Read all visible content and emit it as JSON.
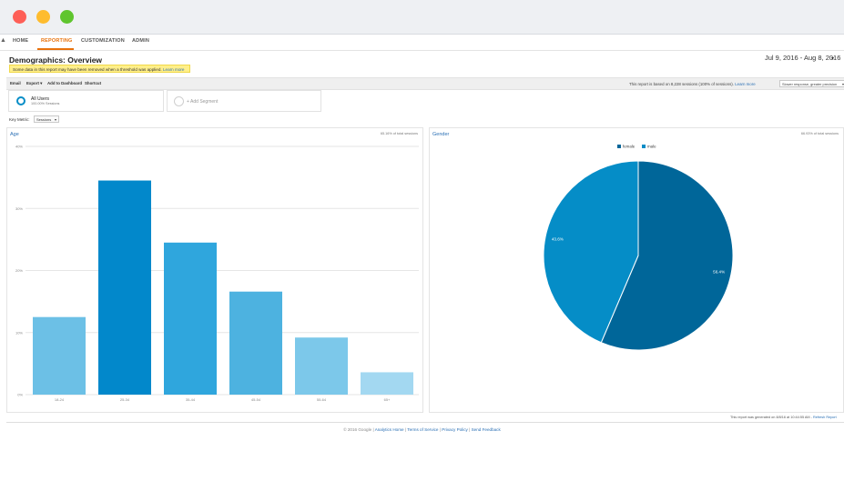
{
  "window": {
    "controls": [
      "close",
      "minimize",
      "maximize"
    ]
  },
  "nav": {
    "tabs": [
      {
        "label": "HOME",
        "active": false
      },
      {
        "label": "REPORTING",
        "active": true
      },
      {
        "label": "CUSTOMIZATION",
        "active": false
      },
      {
        "label": "ADMIN",
        "active": false
      }
    ]
  },
  "header": {
    "title": "Demographics: Overview",
    "date_range": "Jul 9, 2016 - Aug 8, 2016",
    "notice_text": "Some data in this report may have been removed when a threshold was applied.",
    "notice_link": "Learn more"
  },
  "toolbar": {
    "buttons": [
      "Email",
      "Export",
      "Add to Dashboard",
      "Shortcut"
    ],
    "export_caret": "▾",
    "sessions_text": "This report is based on 8,228 sessions (100% of sessions).",
    "sessions_link": "Learn more",
    "precision_select": "Slower response, greater precision"
  },
  "segments": {
    "active": {
      "name": "All Users",
      "sub": "100.00% Sessions"
    },
    "add_label": "+ Add Segment"
  },
  "key_metric": {
    "label": "Key Metric:",
    "value": "Sessions"
  },
  "age_panel": {
    "title": "Age",
    "pct_text": "65.16% of total sessions"
  },
  "gender_panel": {
    "title": "Gender",
    "pct_text": "66.93% of total sessions"
  },
  "chart_data": [
    {
      "type": "bar",
      "title": "Age",
      "categories": [
        "18-24",
        "25-34",
        "35-44",
        "45-54",
        "55-64",
        "65+"
      ],
      "values": [
        12.5,
        34.5,
        24.5,
        16.6,
        9.2,
        3.6
      ],
      "yticks": [
        "0%",
        "10%",
        "20%",
        "30%",
        "40%"
      ],
      "ylim": [
        0,
        40
      ],
      "colors": [
        "#6cc0e6",
        "#0288cb",
        "#2fa6dd",
        "#4db2e0",
        "#7cc8ea",
        "#a3d8f1"
      ],
      "grid": true
    },
    {
      "type": "pie",
      "title": "Gender",
      "slices": [
        {
          "label": "female",
          "value": 56.4,
          "display": "56.4%",
          "color": "#006699"
        },
        {
          "label": "male",
          "value": 43.6,
          "display": "43.6%",
          "color": "#058dc7"
        }
      ],
      "legend": "top"
    }
  ],
  "footer": {
    "generated_text": "This report was generated on 8/8/16 at 10:44:55 AM -",
    "refresh_link": "Refresh Report",
    "copyright": "© 2016 Google",
    "links": [
      "Analytics Home",
      "Terms of Service",
      "Privacy Policy",
      "Send Feedback"
    ]
  }
}
